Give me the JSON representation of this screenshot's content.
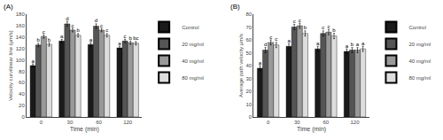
{
  "chart_data": [
    {
      "type": "bar",
      "title": "(A)",
      "xlabel": "Time (min)",
      "ylabel": "Velocity curvilinear line (μm/s)",
      "categories": [
        "0",
        "30",
        "60",
        "120"
      ],
      "ylim": [
        0,
        180
      ],
      "yticks": [
        0,
        20,
        40,
        60,
        80,
        100,
        120,
        140,
        160,
        180
      ],
      "grid": false,
      "legend": "right",
      "series": [
        {
          "name": "Control",
          "color": "#1a1a1a",
          "values": [
            90,
            133,
            127,
            121
          ],
          "errors": [
            3,
            3,
            3,
            3
          ],
          "letters": [
            "a",
            "a",
            "a",
            "a"
          ]
        },
        {
          "name": "20 mg/ml",
          "color": "#555555",
          "values": [
            126,
            163,
            159,
            133
          ],
          "errors": [
            3,
            4,
            4,
            3
          ],
          "letters": [
            "b",
            "d",
            "d",
            "c"
          ]
        },
        {
          "name": "40 mg/ml",
          "color": "#999999",
          "values": [
            141,
            152,
            152,
            130
          ],
          "errors": [
            3,
            3,
            3,
            3
          ],
          "letters": [
            "c",
            "c",
            "c",
            "b"
          ]
        },
        {
          "name": "80 mg/ml",
          "color": "#dddddd",
          "values": [
            127,
            143,
            143,
            129
          ],
          "errors": [
            3,
            3,
            3,
            3
          ],
          "letters": [
            "b",
            "b",
            "c",
            "bc"
          ]
        }
      ]
    },
    {
      "type": "bar",
      "title": "(B)",
      "xlabel": "Time (min)",
      "ylabel": "Average path velocity μm/s",
      "categories": [
        "0",
        "30",
        "60",
        "120"
      ],
      "ylim": [
        0,
        80
      ],
      "yticks": [
        0,
        10,
        20,
        30,
        40,
        50,
        60,
        70,
        80
      ],
      "grid": false,
      "legend": "right",
      "series": [
        {
          "name": "Control",
          "color": "#1a1a1a",
          "values": [
            38,
            55,
            53,
            51
          ],
          "errors": [
            2,
            2,
            2,
            2
          ],
          "letters": [
            "a",
            "a",
            "a",
            "a"
          ]
        },
        {
          "name": "20 mg/ml",
          "color": "#555555",
          "values": [
            52,
            70,
            65,
            52
          ],
          "errors": [
            2,
            2,
            2,
            2
          ],
          "letters": [
            "d",
            "c",
            "c",
            "b"
          ]
        },
        {
          "name": "40 mg/ml",
          "color": "#999999",
          "values": [
            58,
            71,
            66,
            52
          ],
          "errors": [
            2,
            2,
            2,
            2
          ],
          "letters": [
            "c",
            "c",
            "c",
            "a"
          ]
        },
        {
          "name": "80 mg/ml",
          "color": "#dddddd",
          "values": [
            56,
            65,
            63,
            53
          ],
          "errors": [
            2,
            2,
            2,
            2
          ],
          "letters": [
            "c",
            "b",
            "b",
            "a"
          ]
        }
      ]
    }
  ]
}
